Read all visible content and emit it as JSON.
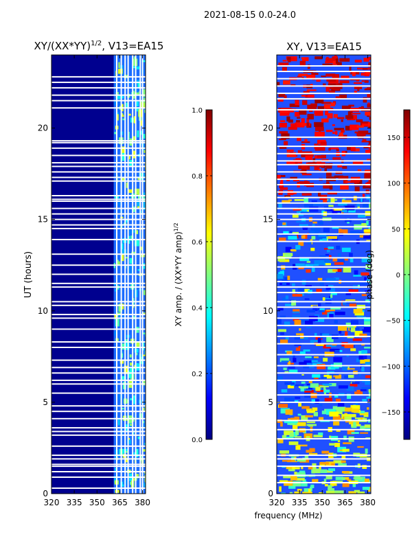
{
  "figure": {
    "suptitle": "2021-08-15 0.0-24.0",
    "xlabel": "frequency (MHz)"
  },
  "chart_data": [
    {
      "type": "heatmap",
      "title_main": "XY/(XX*YY)",
      "title_sup": "1/2",
      "title_rest": ", V13=EA15",
      "ylabel": "UT (hours)",
      "xlim": [
        320,
        382
      ],
      "ylim": [
        0,
        24
      ],
      "xticks": [
        320,
        335,
        350,
        365,
        380
      ],
      "yticks": [
        0,
        5,
        10,
        15,
        20
      ],
      "colorbar": {
        "label_main": "XY amp. / (XX*YY amp)",
        "label_sup": "1/2",
        "range": [
          0.0,
          1.0
        ],
        "ticks": [
          0.0,
          0.2,
          0.4,
          0.6,
          0.8,
          1.0
        ],
        "tick_labels": [
          "0.0",
          "0.2",
          "0.4",
          "0.6",
          "0.8",
          "1.0"
        ]
      },
      "band_start_mhz": 361,
      "channel_dividers_mhz": [
        363,
        366,
        368.5,
        370.5,
        373.5,
        375.5,
        378.5,
        380
      ],
      "gap_hours": [
        0.3,
        0.9,
        1.2,
        1.5,
        1.6,
        1.9,
        2.1,
        2.6,
        3.2,
        3.4,
        3.6,
        4.1,
        4.5,
        4.8,
        5.5,
        6.0,
        6.2,
        6.6,
        6.9,
        7.3,
        8.0,
        8.3,
        9.0,
        9.6,
        9.8,
        10.3,
        10.5,
        11.3,
        11.5,
        12.0,
        12.5,
        13.1,
        13.9,
        14.5,
        14.7,
        15.0,
        15.3,
        15.6,
        16.0,
        16.1,
        16.3,
        17.1,
        17.3,
        17.6,
        17.9,
        18.1,
        18.5,
        18.9,
        19.2,
        19.3,
        21.1,
        21.5,
        21.8,
        22.2,
        22.5,
        22.8
      ]
    },
    {
      "type": "heatmap",
      "title_main": "XY, V13=EA15",
      "xlim": [
        320,
        382
      ],
      "ylim": [
        0,
        24
      ],
      "xticks": [
        320,
        335,
        350,
        365,
        380
      ],
      "yticks": [
        0,
        5,
        10,
        15,
        20
      ],
      "colorbar": {
        "label_main": "phase (deg)",
        "range": [
          -180,
          180
        ],
        "ticks": [
          -150,
          -100,
          -50,
          0,
          50,
          100,
          150
        ],
        "tick_labels": [
          "−150",
          "−100",
          "−50",
          "0",
          "50",
          "100",
          "150"
        ]
      },
      "gap_hours": [
        0.6,
        1.0,
        1.5,
        1.9,
        2.1,
        3.0,
        3.5,
        4.0,
        5.0,
        5.4,
        6.2,
        6.6,
        7.0,
        7.6,
        8.2,
        8.6,
        9.2,
        9.6,
        10.2,
        10.5,
        11.0,
        11.3,
        11.6,
        12.4,
        12.9,
        13.8,
        14.2,
        14.6,
        15.0,
        15.3,
        15.6,
        15.9,
        16.2,
        16.5,
        16.9,
        17.2,
        17.6,
        18.0,
        18.2,
        18.6,
        19.0,
        19.5,
        21.0,
        21.6,
        21.9,
        22.3,
        22.7,
        23.1,
        23.4
      ]
    }
  ]
}
